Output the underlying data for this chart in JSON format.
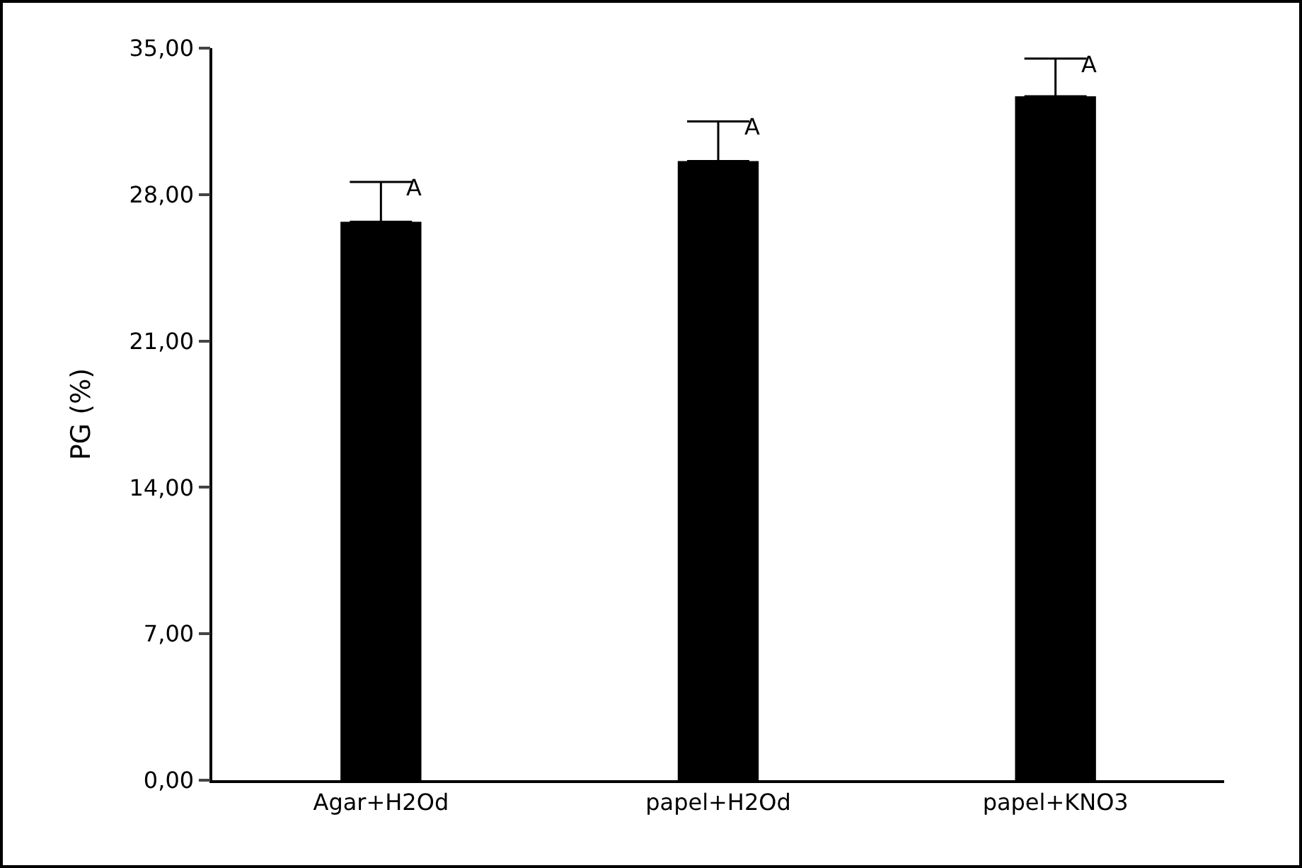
{
  "chart_data": {
    "type": "bar",
    "ylabel": "PG (%)",
    "categories": [
      "Agar+H2Od",
      "papel+H2Od",
      "papel+KNO3"
    ],
    "values": [
      26.7,
      29.6,
      32.7
    ],
    "errors": [
      [
        26.7,
        28.6
      ],
      [
        29.6,
        31.5
      ],
      [
        32.7,
        34.5
      ]
    ],
    "color": "#000000",
    "ylim": [
      0,
      35
    ],
    "yticks": [
      {
        "value": 0,
        "label": "0,00"
      },
      {
        "value": 7,
        "label": "7,00"
      },
      {
        "value": 14,
        "label": "14,00"
      },
      {
        "value": 21,
        "label": "21,00"
      },
      {
        "value": 28,
        "label": "28,00"
      },
      {
        "value": 35,
        "label": "35,00"
      }
    ],
    "annotations": [
      {
        "text": "A",
        "x": "Agar+H2Od",
        "y": 28.6
      },
      {
        "text": "A",
        "x": "papel+H2Od",
        "y": 31.5
      },
      {
        "text": "A",
        "x": "papel+KNO3",
        "y": 34.5
      }
    ],
    "grid": false
  }
}
